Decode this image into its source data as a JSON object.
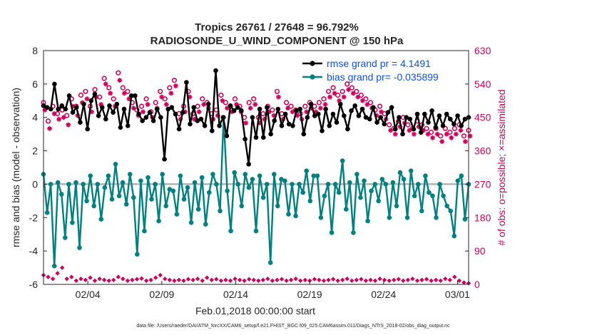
{
  "chart_data": {
    "type": "line",
    "title_line1": "Tropics 26761 / 27648 = 96.792%",
    "title_line2": "RADIOSONDE_U_WIND_COMPONENT @ 150 hPa",
    "xlabel": "Feb.01,2018 00:00:00 start",
    "ylabel_left": "rmse and bias (model - observation)",
    "ylabel_right": "# of obs: o=possible; ×=assimilated",
    "ylim_left": [
      -6,
      8
    ],
    "ylim_right": [
      0,
      630
    ],
    "xlim_days": [
      1.0,
      29.75
    ],
    "left_ticks": [
      "-6",
      "-4",
      "-2",
      "0",
      "2",
      "4",
      "6",
      "8"
    ],
    "right_ticks": [
      "0",
      "90",
      "180",
      "270",
      "360",
      "450",
      "540",
      "630"
    ],
    "x_ticks": [
      {
        "day": 4,
        "label": "02/04"
      },
      {
        "day": 9,
        "label": "02/09"
      },
      {
        "day": 14,
        "label": "02/14"
      },
      {
        "day": 19,
        "label": "02/19"
      },
      {
        "day": 24,
        "label": "02/24"
      },
      {
        "day": 29,
        "label": "03/01"
      }
    ],
    "footnote": "data file: /Users/raeder/DAI/ATM_forcXX/CAM6_setup/f.e21.FHIST_BGC.f09_025.CAM6assim.011/Diags_NTrS_2018-02/obs_diag_output.nc",
    "colors": {
      "rmse": "#000000",
      "bias": "#008080",
      "obs": "#d1005a",
      "legend_text": "#0b52e6",
      "zero_line": "#b3b3b3"
    },
    "series": [
      {
        "name": "rmse",
        "legend": "rmse grand pr = 4.1491",
        "values": [
          4.7,
          4.6,
          4.5,
          6.0,
          4.5,
          4.7,
          4.5,
          5.3,
          4.3,
          4.6,
          3.7,
          4.8,
          3.3,
          5.0,
          5.4,
          4.1,
          4.6,
          3.9,
          4.7,
          4.3,
          4.8,
          3.4,
          4.5,
          3.5,
          5.3,
          5.3,
          4.2,
          3.8,
          4.0,
          4.3,
          3.8,
          4.5,
          4.0,
          1.5,
          4.5,
          4.6,
          4.2,
          3.3,
          4.3,
          6.1,
          3.6,
          4.6,
          3.8,
          3.9,
          3.5,
          4.8,
          3.2,
          6.8,
          3.5,
          4.0,
          2.9,
          4.7,
          4.4,
          4.6,
          4.4,
          2.7,
          1.2,
          4.0,
          2.8,
          4.5,
          2.8,
          4.6,
          3.0,
          3.8,
          4.5,
          3.5,
          4.2,
          3.6,
          3.5,
          4.4,
          4.5,
          3.0,
          4.0,
          4.8,
          4.1,
          4.2,
          3.2,
          4.5,
          3.5,
          4.2,
          3.7,
          4.8,
          4.1,
          3.3,
          4.4,
          4.7,
          4.1,
          4.5,
          4.0,
          3.9,
          4.6,
          3.7,
          4.0,
          3.6,
          4.3,
          4.6,
          3.3,
          4.0,
          3.0,
          4.0,
          3.9,
          3.3,
          4.2,
          3.1,
          4.2,
          3.7,
          4.4,
          3.4,
          4.1,
          3.5,
          4.2,
          3.9,
          3.6,
          4.1,
          3.5,
          3.9,
          4.0
        ]
      },
      {
        "name": "bias",
        "legend": "bias grand pr= -0.035899",
        "values": [
          0.6,
          -1.7,
          0.0,
          -4.9,
          0.1,
          -0.6,
          -3.2,
          0.0,
          -2.3,
          0.1,
          -3.8,
          0.0,
          -1.0,
          0.5,
          -1.3,
          0.0,
          -2.1,
          -0.2,
          0.5,
          -0.9,
          1.2,
          -0.7,
          0.1,
          -1.2,
          0.6,
          -0.8,
          -4.2,
          0.2,
          -2.8,
          0.4,
          -0.9,
          0.0,
          -2.2,
          0.6,
          -1.3,
          -0.3,
          -0.4,
          -1.8,
          0.5,
          -0.9,
          -0.2,
          -2.3,
          0.1,
          -1.5,
          0.4,
          -2.4,
          -0.5,
          0.6,
          0.0,
          -1.6,
          4.0,
          -0.4,
          -2.8,
          0.7,
          0.0,
          -1.3,
          0.6,
          -0.2,
          0.3,
          -2.8,
          0.5,
          -0.8,
          0.0,
          -4.7,
          0.6,
          -1.3,
          0.3,
          0.2,
          -1.8,
          0.0,
          -1.9,
          0.0,
          -0.5,
          0.8,
          -1.0,
          0.5,
          0.5,
          -2.0,
          -0.7,
          0.0,
          -2.9,
          0.0,
          -0.5,
          1.4,
          -1.5,
          0.1,
          -2.9,
          0.6,
          -0.8,
          0.2,
          -2.2,
          -0.4,
          0.0,
          -1.0,
          0.3,
          0.0,
          -2.0,
          0.1,
          -1.3,
          0.7,
          0.3,
          -2.0,
          0.8,
          -0.7,
          0.0,
          -1.6,
          0.5,
          -0.5,
          -0.7,
          -2.0,
          0.0,
          -0.7,
          -1.3,
          -1.6,
          -3.1,
          0.2,
          0.5,
          -2.1,
          0.0
        ]
      },
      {
        "name": "obs_possible",
        "values": [
          490,
          440,
          480,
          460,
          470,
          455,
          500,
          480,
          510,
          520,
          480,
          525,
          505,
          555,
          530,
          500,
          570,
          530,
          520,
          490,
          470,
          480,
          500,
          465,
          490,
          520,
          500,
          530,
          550,
          460,
          480,
          520,
          460,
          480,
          500,
          490,
          460,
          470,
          510,
          490,
          480,
          500,
          480,
          450,
          490,
          500,
          450,
          460,
          480,
          470,
          520,
          460,
          490,
          480,
          470,
          460,
          480,
          490,
          480,
          490,
          500,
          520,
          530,
          510,
          520,
          540,
          530,
          520,
          510,
          500,
          490,
          470,
          480,
          460,
          430,
          420,
          440,
          450,
          430,
          420,
          440,
          430,
          420,
          410,
          420,
          400,
          420,
          410,
          420,
          430,
          400,
          415
        ]
      },
      {
        "name": "obs_assimilated",
        "values": [
          470,
          420,
          460,
          445,
          450,
          430,
          480,
          455,
          490,
          500,
          465,
          505,
          485,
          540,
          515,
          480,
          550,
          515,
          500,
          475,
          455,
          465,
          485,
          450,
          475,
          505,
          485,
          515,
          535,
          445,
          465,
          505,
          445,
          465,
          485,
          475,
          445,
          455,
          495,
          475,
          465,
          485,
          465,
          435,
          475,
          485,
          435,
          445,
          465,
          455,
          505,
          445,
          475,
          465,
          455,
          445,
          465,
          475,
          465,
          475,
          485,
          505,
          515,
          495,
          505,
          525,
          515,
          505,
          495,
          485,
          475,
          455,
          465,
          445,
          415,
          405,
          425,
          435,
          415,
          405,
          425,
          415,
          405,
          395,
          405,
          385,
          405,
          395,
          405,
          415,
          385,
          400
        ]
      },
      {
        "name": "obs_used_small",
        "values": [
          25,
          20,
          15,
          30,
          45,
          15,
          20,
          10,
          15,
          12,
          18,
          10,
          15,
          12,
          10,
          12,
          20,
          15,
          10,
          12,
          14,
          16,
          10,
          12,
          18,
          25,
          15,
          12,
          10,
          12,
          10,
          14,
          12,
          15,
          10,
          18,
          12,
          14,
          10,
          12,
          10,
          15,
          12,
          10,
          14,
          12,
          10,
          12,
          15,
          10,
          12,
          14,
          10,
          12,
          15,
          10,
          12,
          10,
          14,
          12,
          10,
          12,
          14,
          10,
          12,
          15,
          10,
          12,
          14,
          10,
          12,
          10,
          15,
          12,
          10,
          12,
          14,
          10,
          12,
          15,
          10,
          12,
          14,
          10,
          12,
          10,
          15,
          12,
          20,
          10,
          5,
          3
        ]
      }
    ]
  }
}
